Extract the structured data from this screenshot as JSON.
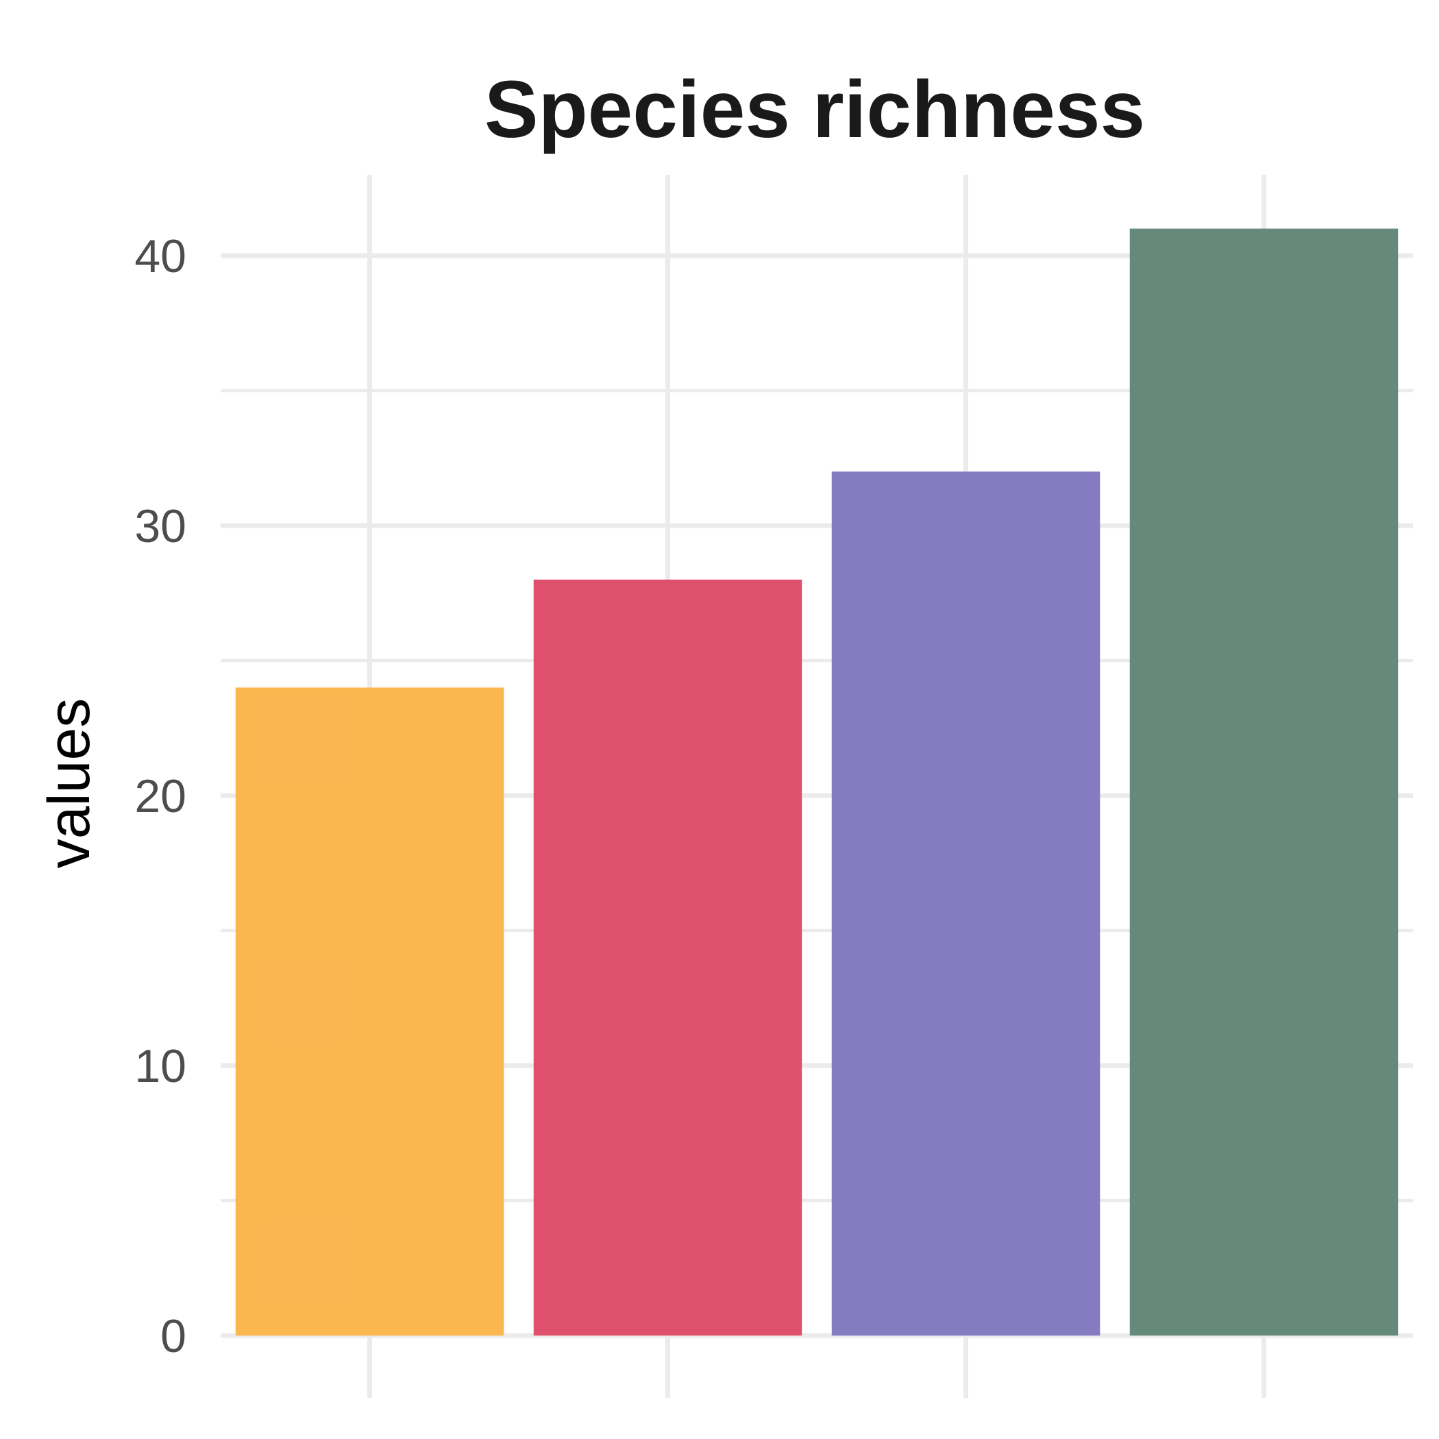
{
  "chart_data": {
    "type": "bar",
    "title": "Species richness",
    "xlabel": "",
    "ylabel": "values",
    "categories": [
      "",
      "",
      "",
      ""
    ],
    "values": [
      24,
      28,
      32,
      41
    ],
    "colors": [
      "#FCB54D",
      "#DE4D69",
      "#8278C0",
      "#628778"
    ],
    "ylim": [
      0,
      43.05
    ],
    "yticks": [
      0,
      10,
      20,
      30,
      40
    ],
    "ytick_labels": [
      "0",
      "10",
      "20",
      "30",
      "40"
    ],
    "grid": true,
    "legend": false
  }
}
